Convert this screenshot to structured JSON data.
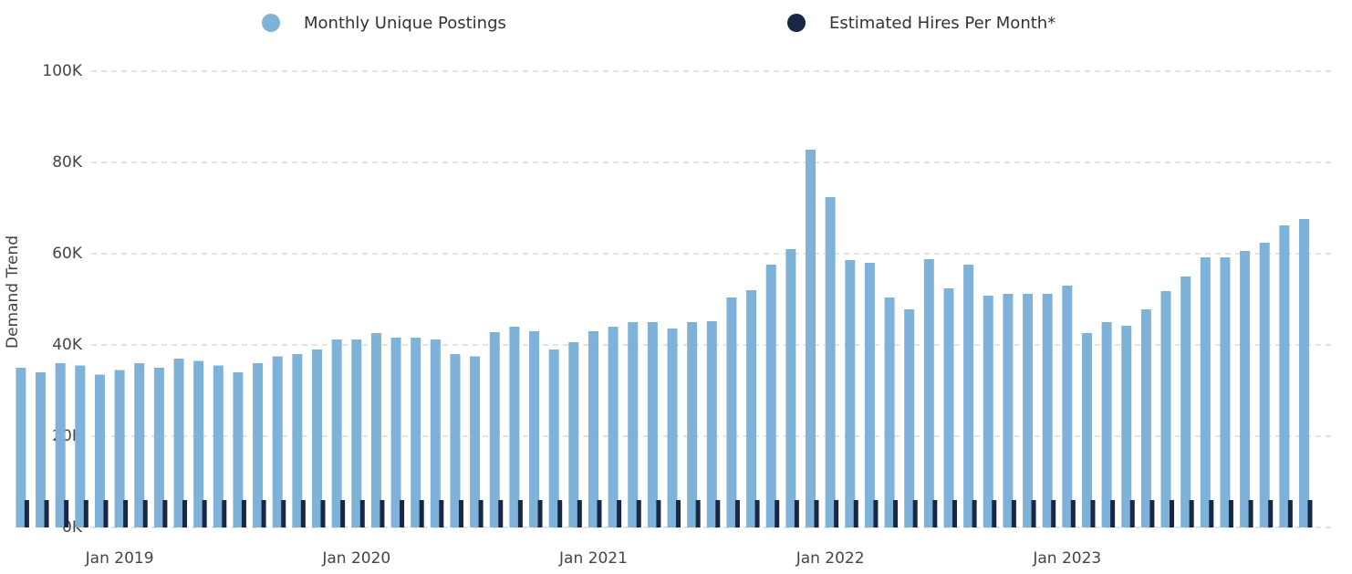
{
  "chart_data": {
    "type": "bar",
    "y_label": "Demand Trend",
    "categories": [
      null,
      null,
      null,
      null,
      null,
      "Jan 2019",
      null,
      null,
      null,
      null,
      null,
      null,
      null,
      null,
      null,
      null,
      null,
      "Jan 2020",
      null,
      null,
      null,
      null,
      null,
      null,
      null,
      null,
      null,
      null,
      null,
      "Jan 2021",
      null,
      null,
      null,
      null,
      null,
      null,
      null,
      null,
      null,
      null,
      null,
      "Jan 2022",
      null,
      null,
      null,
      null,
      null,
      null,
      null,
      null,
      null,
      null,
      null,
      "Jan 2023",
      null,
      null,
      null,
      null,
      null,
      null,
      null,
      null,
      null,
      null,
      null,
      null
    ],
    "series": [
      {
        "name": "Monthly Unique Postings",
        "color": "#7fb2d9",
        "values": [
          35000,
          34000,
          36000,
          35500,
          33500,
          34500,
          36000,
          35000,
          37000,
          36500,
          35500,
          34000,
          36000,
          37500,
          38000,
          39000,
          41200,
          41200,
          42600,
          41600,
          41600,
          41200,
          38000,
          37500,
          42800,
          44000,
          43000,
          39000,
          40600,
          43000,
          44000,
          45000,
          45000,
          43600,
          45000,
          45200,
          50400,
          52000,
          57600,
          61000,
          82800,
          72400,
          58600,
          58000,
          50400,
          47800,
          58800,
          52400,
          57600,
          50800,
          51200,
          51200,
          51200,
          53000,
          42600,
          45000,
          44200,
          47800,
          51800,
          55000,
          59200,
          59200,
          60600,
          62400,
          66200,
          67600
        ]
      },
      {
        "name": "Estimated Hires Per Month*",
        "color": "#1a2744",
        "values": [
          6000,
          6000,
          6000,
          6000,
          6000,
          6000,
          6000,
          6000,
          6000,
          6000,
          6000,
          6000,
          6000,
          6000,
          6000,
          6000,
          6000,
          6000,
          6000,
          6000,
          6000,
          6000,
          6000,
          6000,
          6000,
          6000,
          6000,
          6000,
          6000,
          6000,
          6000,
          6000,
          6000,
          6000,
          6000,
          6000,
          6000,
          6000,
          6000,
          6000,
          6000,
          6000,
          6000,
          6000,
          6000,
          6000,
          6000,
          6000,
          6000,
          6000,
          6000,
          6000,
          6000,
          6000,
          6000,
          6000,
          6000,
          6000,
          6000,
          6000,
          6000,
          6000,
          6000,
          6000,
          6000,
          6000
        ]
      }
    ],
    "ylim": [
      0,
      100000
    ],
    "yticks": [
      {
        "value": 0,
        "label": "0K"
      },
      {
        "value": 20000,
        "label": "20K"
      },
      {
        "value": 40000,
        "label": "40K"
      },
      {
        "value": 60000,
        "label": "60K"
      },
      {
        "value": 80000,
        "label": "80K"
      },
      {
        "value": 100000,
        "label": "100K"
      }
    ],
    "grid": true
  }
}
